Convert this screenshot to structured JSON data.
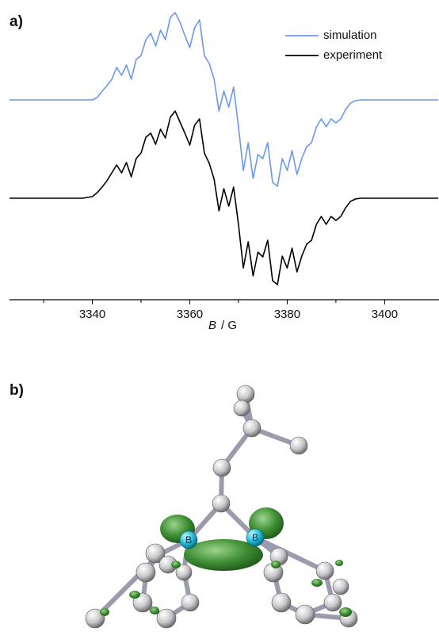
{
  "panels": {
    "a": "a)",
    "b": "b)"
  },
  "chart_data": {
    "type": "line",
    "xlabel_symbol": "B",
    "xlabel_unit": "/ G",
    "x": [
      3323,
      3324,
      3325,
      3326,
      3327,
      3328,
      3329,
      3330,
      3331,
      3332,
      3333,
      3334,
      3335,
      3336,
      3337,
      3338,
      3339,
      3340,
      3341,
      3342,
      3343,
      3344,
      3345,
      3346,
      3347,
      3348,
      3349,
      3350,
      3351,
      3352,
      3353,
      3354,
      3355,
      3356,
      3357,
      3358,
      3359,
      3360,
      3361,
      3362,
      3363,
      3364,
      3365,
      3366,
      3367,
      3368,
      3369,
      3370,
      3371,
      3372,
      3373,
      3374,
      3375,
      3376,
      3377,
      3378,
      3379,
      3380,
      3381,
      3382,
      3383,
      3384,
      3385,
      3386,
      3387,
      3388,
      3389,
      3390,
      3391,
      3392,
      3393,
      3394,
      3395,
      3396,
      3397,
      3398,
      3399,
      3400,
      3401,
      3402,
      3403,
      3404,
      3405,
      3406,
      3407,
      3408,
      3409,
      3410,
      3411
    ],
    "series": [
      {
        "name": "simulation",
        "color": "#6b97f2",
        "values": [
          252,
          252,
          252,
          252,
          252,
          252,
          252,
          252,
          252,
          252,
          252,
          252,
          252,
          252,
          252,
          252,
          252,
          252,
          255,
          263,
          270,
          278,
          293,
          283,
          296,
          278,
          303,
          308,
          328,
          336,
          320,
          340,
          328,
          356,
          362,
          350,
          333,
          318,
          343,
          353,
          308,
          298,
          278,
          238,
          263,
          243,
          268,
          218,
          163,
          198,
          153,
          183,
          178,
          198,
          148,
          143,
          178,
          163,
          188,
          158,
          178,
          193,
          198,
          218,
          228,
          218,
          228,
          223,
          228,
          240,
          248,
          251,
          252,
          252,
          252,
          252,
          252,
          252,
          252,
          252,
          252,
          252,
          252,
          252,
          252,
          252,
          252,
          252,
          252
        ]
      },
      {
        "name": "experiment",
        "color": "#000000",
        "values": [
          128,
          128,
          128,
          128,
          128,
          128,
          128,
          128,
          128,
          128,
          128,
          128,
          128,
          128,
          128,
          128,
          129,
          130,
          135,
          142,
          150,
          160,
          170,
          160,
          173,
          155,
          178,
          185,
          205,
          210,
          196,
          215,
          204,
          230,
          238,
          224,
          210,
          195,
          220,
          228,
          185,
          172,
          152,
          112,
          140,
          118,
          142,
          95,
          40,
          73,
          30,
          60,
          54,
          75,
          24,
          19,
          55,
          40,
          65,
          35,
          55,
          70,
          75,
          95,
          105,
          95,
          105,
          100,
          105,
          116,
          124,
          127,
          128,
          128,
          128,
          128,
          128,
          128,
          128,
          128,
          128,
          128,
          128,
          128,
          128,
          128,
          128,
          128,
          128
        ]
      }
    ],
    "xlim": [
      3323,
      3411
    ],
    "xticks": [
      3340,
      3360,
      3380,
      3400
    ],
    "minor_xticks": [
      3330,
      3350,
      3370,
      3390
    ],
    "ylim": [
      0,
      365
    ]
  },
  "molecule": {
    "atom_labels": [
      "B",
      "B"
    ]
  }
}
